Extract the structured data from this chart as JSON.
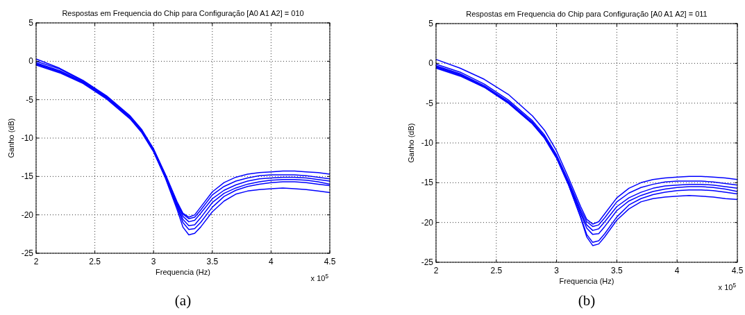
{
  "chart_data": [
    {
      "type": "line",
      "title": "Respostas em Frequencia do Chip para Configuração [A0 A1 A2] = 010",
      "xlabel": "Frequencia (Hz)",
      "ylabel": "Ganho (dB)",
      "annotations": [
        "x 10$^{5}$",
        "(a)"
      ],
      "xlim": [
        2,
        4.5
      ],
      "xticks": [
        2,
        2.5,
        3,
        3.5,
        4,
        4.5
      ],
      "ylim": [
        -25,
        5
      ],
      "yticks": [
        -25,
        -20,
        -15,
        -10,
        -5,
        0,
        5
      ],
      "grid": true,
      "line_style": "solid",
      "x": [
        2,
        2.2,
        2.4,
        2.6,
        2.8,
        2.9,
        3.0,
        3.1,
        3.2,
        3.25,
        3.3,
        3.35,
        3.4,
        3.5,
        3.6,
        3.7,
        3.8,
        3.9,
        4.0,
        4.1,
        4.2,
        4.3,
        4.4,
        4.5
      ],
      "series": [
        {
          "color": "#0000ff",
          "values": [
            0.3,
            -0.9,
            -2.5,
            -4.5,
            -7.1,
            -8.9,
            -11.4,
            -14.7,
            -18.3,
            -19.8,
            -20.3,
            -20.0,
            -19.0,
            -17.0,
            -15.8,
            -15.1,
            -14.7,
            -14.5,
            -14.4,
            -14.3,
            -14.3,
            -14.4,
            -14.5,
            -14.7
          ]
        },
        {
          "color": "#0000ff",
          "values": [
            0.0,
            -1.0,
            -2.6,
            -4.6,
            -7.2,
            -9.0,
            -11.5,
            -14.8,
            -18.4,
            -19.9,
            -20.5,
            -20.3,
            -19.4,
            -17.4,
            -16.3,
            -15.6,
            -15.2,
            -14.9,
            -14.8,
            -14.8,
            -14.8,
            -14.9,
            -15.1,
            -15.3
          ]
        },
        {
          "color": "#0000ff",
          "values": [
            -0.2,
            -1.2,
            -2.7,
            -4.7,
            -7.3,
            -9.1,
            -11.6,
            -14.9,
            -18.6,
            -20.2,
            -20.9,
            -20.7,
            -19.8,
            -17.9,
            -16.8,
            -16.1,
            -15.6,
            -15.3,
            -15.2,
            -15.1,
            -15.1,
            -15.2,
            -15.4,
            -15.6
          ]
        },
        {
          "color": "#0000ff",
          "values": [
            -0.4,
            -1.4,
            -2.8,
            -4.8,
            -7.4,
            -9.2,
            -11.7,
            -15.0,
            -18.8,
            -20.6,
            -21.4,
            -21.3,
            -20.4,
            -18.4,
            -17.2,
            -16.5,
            -16.0,
            -15.7,
            -15.5,
            -15.4,
            -15.4,
            -15.5,
            -15.7,
            -16.0
          ]
        },
        {
          "color": "#0000ff",
          "values": [
            -0.3,
            -1.3,
            -2.8,
            -4.8,
            -7.4,
            -9.2,
            -11.7,
            -15.1,
            -19.0,
            -21.0,
            -21.9,
            -21.8,
            -21.0,
            -19.0,
            -17.6,
            -16.8,
            -16.3,
            -16.0,
            -15.8,
            -15.7,
            -15.7,
            -15.8,
            -16.0,
            -16.2
          ]
        },
        {
          "color": "#0000ff",
          "values": [
            -0.5,
            -1.5,
            -2.9,
            -4.9,
            -7.5,
            -9.3,
            -11.8,
            -15.2,
            -19.3,
            -21.6,
            -22.6,
            -22.4,
            -21.6,
            -19.6,
            -18.2,
            -17.3,
            -16.9,
            -16.7,
            -16.6,
            -16.5,
            -16.6,
            -16.7,
            -16.9,
            -17.1
          ]
        }
      ]
    },
    {
      "type": "line",
      "title": "Respostas em Frequencia do Chip para Configuração [A0 A1 A2] = 011",
      "xlabel": "Frequencia (Hz)",
      "ylabel": "Ganho (dB)",
      "annotations": [
        "x 10$^{5}$",
        "(b)"
      ],
      "xlim": [
        2,
        4.5
      ],
      "xticks": [
        2,
        2.5,
        3,
        3.5,
        4,
        4.5
      ],
      "ylim": [
        -25,
        5
      ],
      "yticks": [
        -25,
        -20,
        -15,
        -10,
        -5,
        0,
        5
      ],
      "grid": true,
      "line_style": "solid",
      "x": [
        2,
        2.2,
        2.4,
        2.6,
        2.8,
        2.9,
        3.0,
        3.1,
        3.2,
        3.25,
        3.3,
        3.35,
        3.4,
        3.5,
        3.6,
        3.7,
        3.8,
        3.9,
        4.0,
        4.1,
        4.2,
        4.3,
        4.4,
        4.5
      ],
      "series": [
        {
          "color": "#0000ff",
          "values": [
            0.5,
            -0.6,
            -2.0,
            -3.9,
            -6.6,
            -8.4,
            -11.0,
            -14.4,
            -18.0,
            -19.6,
            -20.2,
            -19.9,
            -18.9,
            -16.9,
            -15.7,
            -15.0,
            -14.6,
            -14.4,
            -14.3,
            -14.2,
            -14.2,
            -14.3,
            -14.4,
            -14.6
          ]
        },
        {
          "color": "#0000ff",
          "values": [
            -0.1,
            -1.1,
            -2.6,
            -4.6,
            -7.2,
            -9.0,
            -11.5,
            -14.8,
            -18.4,
            -19.9,
            -20.5,
            -20.3,
            -19.4,
            -17.4,
            -16.3,
            -15.6,
            -15.2,
            -14.9,
            -14.8,
            -14.8,
            -14.8,
            -14.9,
            -15.1,
            -15.3
          ]
        },
        {
          "color": "#0000ff",
          "values": [
            -0.3,
            -1.3,
            -2.8,
            -4.8,
            -7.4,
            -9.2,
            -11.7,
            -15.0,
            -18.7,
            -20.3,
            -21.0,
            -20.8,
            -19.9,
            -18.0,
            -16.9,
            -16.2,
            -15.7,
            -15.4,
            -15.3,
            -15.2,
            -15.2,
            -15.3,
            -15.5,
            -15.7
          ]
        },
        {
          "color": "#0000ff",
          "values": [
            -0.4,
            -1.4,
            -2.9,
            -4.9,
            -7.5,
            -9.3,
            -11.8,
            -15.1,
            -18.9,
            -20.7,
            -21.5,
            -21.4,
            -20.5,
            -18.5,
            -17.3,
            -16.6,
            -16.1,
            -15.8,
            -15.6,
            -15.5,
            -15.5,
            -15.6,
            -15.8,
            -16.1
          ]
        },
        {
          "color": "#0000ff",
          "values": [
            -0.5,
            -1.5,
            -3.0,
            -5.0,
            -7.6,
            -9.4,
            -11.9,
            -15.3,
            -19.3,
            -21.5,
            -22.5,
            -22.3,
            -21.4,
            -19.3,
            -17.8,
            -17.0,
            -16.5,
            -16.2,
            -16.0,
            -15.9,
            -15.9,
            -16.0,
            -16.2,
            -16.4
          ]
        },
        {
          "color": "#0000ff",
          "values": [
            -0.6,
            -1.6,
            -3.0,
            -5.0,
            -7.6,
            -9.4,
            -11.9,
            -15.3,
            -19.4,
            -21.8,
            -22.9,
            -22.7,
            -21.8,
            -19.7,
            -18.3,
            -17.4,
            -17.0,
            -16.8,
            -16.7,
            -16.6,
            -16.7,
            -16.8,
            -17.0,
            -17.1
          ]
        }
      ]
    }
  ]
}
